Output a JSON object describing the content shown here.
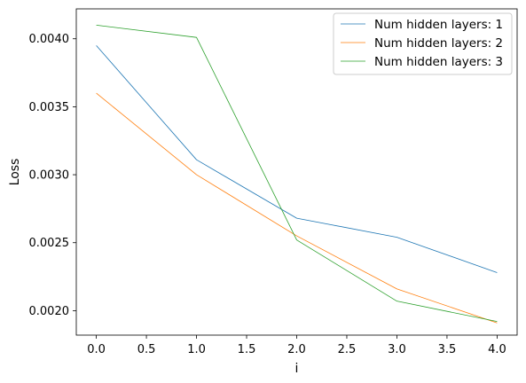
{
  "chart_data": {
    "type": "line",
    "xlabel": "i",
    "ylabel": "Loss",
    "xlim": [
      -0.2,
      4.2
    ],
    "ylim": [
      0.00182,
      0.00422
    ],
    "xticks": [
      0.0,
      0.5,
      1.0,
      1.5,
      2.0,
      2.5,
      3.0,
      3.5,
      4.0
    ],
    "xtick_labels": [
      "0.0",
      "0.5",
      "1.0",
      "1.5",
      "2.0",
      "2.5",
      "3.0",
      "3.5",
      "4.0"
    ],
    "yticks": [
      0.002,
      0.0025,
      0.003,
      0.0035,
      0.004
    ],
    "ytick_labels": [
      "0.0020",
      "0.0025",
      "0.0030",
      "0.0035",
      "0.0040"
    ],
    "grid": false,
    "legend_position": "top-right",
    "x": [
      0,
      1,
      2,
      3,
      4
    ],
    "series": [
      {
        "name": "Num hidden layers: 1",
        "color": "#1f77b4",
        "values": [
          0.00395,
          0.00311,
          0.00268,
          0.00254,
          0.00228
        ]
      },
      {
        "name": "Num hidden layers: 2",
        "color": "#ff7f0e",
        "values": [
          0.0036,
          0.003,
          0.00255,
          0.00216,
          0.00191
        ]
      },
      {
        "name": "Num hidden layers: 3",
        "color": "#2ca02c",
        "values": [
          0.0041,
          0.00401,
          0.00252,
          0.00207,
          0.00192
        ]
      }
    ]
  }
}
